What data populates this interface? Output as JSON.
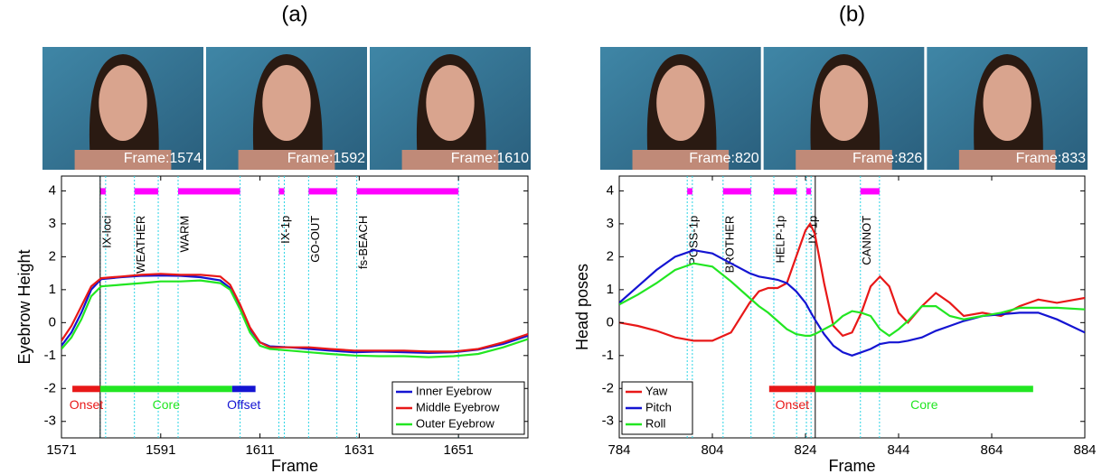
{
  "chart_data": [
    {
      "type": "line",
      "title": "(a)",
      "x_label": "Frame",
      "y_label": "Eyebrow Height",
      "frames": [
        "Frame:1574",
        "Frame:1592",
        "Frame:1610"
      ],
      "x": [
        1571,
        1573,
        1575,
        1577,
        1579,
        1583,
        1587,
        1591,
        1595,
        1599,
        1603,
        1605,
        1607,
        1609,
        1611,
        1613,
        1617,
        1621,
        1625,
        1630,
        1635,
        1640,
        1645,
        1650,
        1655,
        1660,
        1665
      ],
      "series": [
        {
          "name": "Inner Eyebrow",
          "color": "#1414d2",
          "values": [
            -0.7,
            -0.3,
            0.3,
            1.0,
            1.32,
            1.38,
            1.42,
            1.43,
            1.42,
            1.38,
            1.28,
            1.05,
            0.5,
            -0.2,
            -0.6,
            -0.72,
            -0.75,
            -0.8,
            -0.85,
            -0.9,
            -0.88,
            -0.9,
            -0.92,
            -0.9,
            -0.82,
            -0.65,
            -0.4
          ]
        },
        {
          "name": "Middle Eyebrow",
          "color": "#e81818",
          "values": [
            -0.55,
            -0.1,
            0.5,
            1.1,
            1.35,
            1.4,
            1.45,
            1.48,
            1.45,
            1.45,
            1.4,
            1.15,
            0.55,
            -0.15,
            -0.6,
            -0.75,
            -0.75,
            -0.75,
            -0.8,
            -0.85,
            -0.85,
            -0.85,
            -0.88,
            -0.88,
            -0.8,
            -0.6,
            -0.35
          ]
        },
        {
          "name": "Outer Eyebrow",
          "color": "#22e622",
          "values": [
            -0.8,
            -0.45,
            0.1,
            0.8,
            1.1,
            1.15,
            1.2,
            1.25,
            1.25,
            1.28,
            1.2,
            1.0,
            0.4,
            -0.3,
            -0.7,
            -0.8,
            -0.85,
            -0.9,
            -0.95,
            -1.0,
            -1.02,
            -1.02,
            -1.05,
            -1.02,
            -0.95,
            -0.75,
            -0.5
          ]
        }
      ],
      "glosses": [
        {
          "label": "IX-loci",
          "start": 1578.8,
          "end": 1579.9
        },
        {
          "label": "WEATHER",
          "start": 1585.7,
          "end": 1590.5
        },
        {
          "label": "WARM",
          "start": 1594.5,
          "end": 1607
        },
        {
          "label": "IX-1p",
          "start": 1614.8,
          "end": 1615.9
        },
        {
          "label": "GO-OUT",
          "start": 1620.8,
          "end": 1626.5
        },
        {
          "label": "fs-BEACH",
          "start": 1630.5,
          "end": 1651
        }
      ],
      "gloss_color": "#ff00ff",
      "phases": [
        {
          "label": "Onset",
          "start": 1573.2,
          "end": 1578.8,
          "color": "#e81818"
        },
        {
          "label": "Core",
          "start": 1578.8,
          "end": 1605.4,
          "color": "#22e622"
        },
        {
          "label": "Offset",
          "start": 1605.4,
          "end": 1610.1,
          "color": "#1414d2"
        }
      ],
      "divider": 1578.8,
      "legend": "lower-right",
      "xlim": [
        1571,
        1665
      ],
      "ylim": [
        -3.5,
        4.45
      ],
      "xticks": [
        1571,
        1591,
        1611,
        1631,
        1651
      ],
      "yticks": [
        4,
        3,
        2,
        1,
        0,
        -1,
        -2,
        -3
      ]
    },
    {
      "type": "line",
      "title": "(b)",
      "x_label": "Frame",
      "y_label": "Head poses",
      "frames": [
        "Frame:820",
        "Frame:826",
        "Frame:833"
      ],
      "x": [
        784,
        788,
        792,
        796,
        800,
        804,
        808,
        812,
        814,
        816,
        818,
        820,
        822,
        824,
        825,
        826,
        828,
        830,
        832,
        834,
        836,
        838,
        840,
        842,
        844,
        846,
        849,
        852,
        855,
        858,
        862,
        866,
        870,
        874,
        878,
        884
      ],
      "series": [
        {
          "name": "Yaw",
          "color": "#e81818",
          "values": [
            0,
            -0.1,
            -0.25,
            -0.45,
            -0.55,
            -0.55,
            -0.3,
            0.6,
            0.95,
            1.05,
            1.05,
            1.2,
            2.0,
            2.8,
            3.0,
            2.7,
            1.2,
            -0.1,
            -0.4,
            -0.3,
            0.3,
            1.1,
            1.4,
            1.1,
            0.3,
            0,
            0.5,
            0.9,
            0.6,
            0.2,
            0.3,
            0.2,
            0.5,
            0.7,
            0.6,
            0.75
          ]
        },
        {
          "name": "Pitch",
          "color": "#1414d2",
          "values": [
            0.6,
            1.1,
            1.6,
            2.0,
            2.2,
            2.1,
            1.8,
            1.5,
            1.4,
            1.35,
            1.3,
            1.2,
            0.95,
            0.6,
            0.35,
            0.1,
            -0.35,
            -0.7,
            -0.9,
            -1.0,
            -0.9,
            -0.8,
            -0.65,
            -0.6,
            -0.6,
            -0.55,
            -0.45,
            -0.25,
            -0.1,
            0.05,
            0.2,
            0.25,
            0.3,
            0.3,
            0.1,
            -0.3
          ]
        },
        {
          "name": "Roll",
          "color": "#22e622",
          "values": [
            0.55,
            0.85,
            1.2,
            1.6,
            1.8,
            1.7,
            1.25,
            0.75,
            0.5,
            0.3,
            0.05,
            -0.2,
            -0.35,
            -0.4,
            -0.4,
            -0.35,
            -0.2,
            -0.05,
            0.2,
            0.35,
            0.3,
            0.2,
            -0.2,
            -0.4,
            -0.2,
            0.05,
            0.5,
            0.5,
            0.2,
            0.1,
            0.2,
            0.3,
            0.45,
            0.45,
            0.45,
            0.4
          ]
        }
      ],
      "glosses": [
        {
          "label": "POSS-1p",
          "start": 798.6,
          "end": 799.7
        },
        {
          "label": "BROTHER",
          "start": 806.3,
          "end": 812.3
        },
        {
          "label": "HELP-1p",
          "start": 817.2,
          "end": 822.1
        },
        {
          "label": "IX-1p",
          "start": 824.2,
          "end": 825.2
        },
        {
          "label": "CANNOT",
          "start": 835.8,
          "end": 839.9
        }
      ],
      "gloss_color": "#ff00ff",
      "phases": [
        {
          "label": "Onset",
          "start": 816.2,
          "end": 826.1,
          "color": "#e81818"
        },
        {
          "label": "Core",
          "start": 826.1,
          "end": 872.9,
          "color": "#22e622"
        }
      ],
      "divider": 826.1,
      "legend": "lower-left",
      "xlim": [
        784,
        884
      ],
      "ylim": [
        -3.5,
        4.45
      ],
      "xticks": [
        784,
        804,
        824,
        844,
        864,
        884
      ],
      "yticks": [
        4,
        3,
        2,
        1,
        0,
        -1,
        -2,
        -3
      ]
    }
  ]
}
